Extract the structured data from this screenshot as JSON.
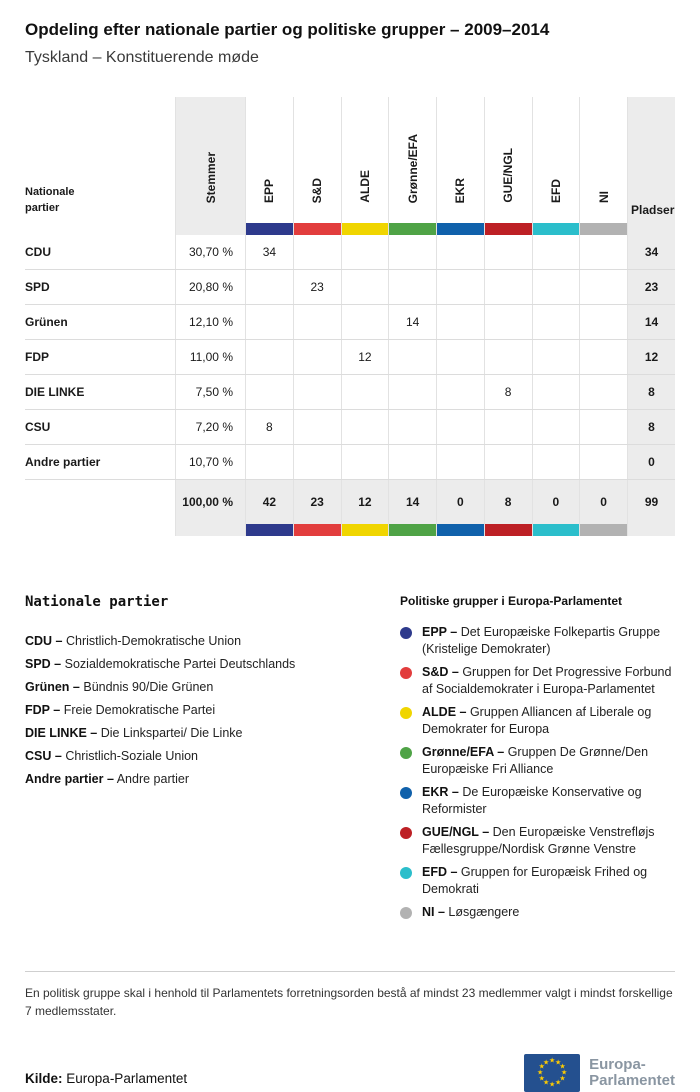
{
  "header": {
    "title": "Opdeling efter nationale partier og politiske grupper – 2009–2014",
    "subtitle": "Tyskland – Konstituerende møde"
  },
  "table": {
    "corner_label": "Nationale partier",
    "stemmer_label": "Stemmer",
    "pladser_label": "Pladser",
    "groups": [
      {
        "label": "EPP",
        "color": "#2e3a8c"
      },
      {
        "label": "S&D",
        "color": "#e23d3d"
      },
      {
        "label": "ALDE",
        "color": "#f0d500"
      },
      {
        "label": "Grønne/EFA",
        "color": "#4fa346"
      },
      {
        "label": "EKR",
        "color": "#1061ab"
      },
      {
        "label": "GUE/NGL",
        "color": "#bd2025"
      },
      {
        "label": "EFD",
        "color": "#2bbecb"
      },
      {
        "label": "NI",
        "color": "#b2b2b2"
      }
    ],
    "rows": [
      {
        "party": "CDU",
        "stemmer": "30,70 %",
        "cells": [
          "34",
          "",
          "",
          "",
          "",
          "",
          "",
          ""
        ],
        "pladser": "34"
      },
      {
        "party": "SPD",
        "stemmer": "20,80 %",
        "cells": [
          "",
          "23",
          "",
          "",
          "",
          "",
          "",
          ""
        ],
        "pladser": "23"
      },
      {
        "party": "Grünen",
        "stemmer": "12,10 %",
        "cells": [
          "",
          "",
          "",
          "14",
          "",
          "",
          "",
          ""
        ],
        "pladser": "14"
      },
      {
        "party": "FDP",
        "stemmer": "11,00 %",
        "cells": [
          "",
          "",
          "12",
          "",
          "",
          "",
          "",
          ""
        ],
        "pladser": "12"
      },
      {
        "party": "DIE LINKE",
        "stemmer": "7,50 %",
        "cells": [
          "",
          "",
          "",
          "",
          "",
          "8",
          "",
          ""
        ],
        "pladser": "8"
      },
      {
        "party": "CSU",
        "stemmer": "7,20 %",
        "cells": [
          "8",
          "",
          "",
          "",
          "",
          "",
          "",
          ""
        ],
        "pladser": "8"
      },
      {
        "party": "Andre partier",
        "stemmer": "10,70 %",
        "cells": [
          "",
          "",
          "",
          "",
          "",
          "",
          "",
          ""
        ],
        "pladser": "0"
      }
    ],
    "total": {
      "stemmer": "100,00 %",
      "cells": [
        "42",
        "23",
        "12",
        "14",
        "0",
        "8",
        "0",
        "0"
      ],
      "pladser": "99"
    }
  },
  "legend_national": {
    "title": "Nationale partier",
    "items": [
      {
        "abbr": "CDU –",
        "desc": "Christlich-Demokratische Union"
      },
      {
        "abbr": "SPD –",
        "desc": "Sozialdemokratische Partei Deutschlands"
      },
      {
        "abbr": "Grünen –",
        "desc": "Bündnis 90/Die Grünen"
      },
      {
        "abbr": "FDP –",
        "desc": "Freie Demokratische Partei"
      },
      {
        "abbr": "DIE LINKE –",
        "desc": "Die Linkspartei/ Die Linke"
      },
      {
        "abbr": "CSU –",
        "desc": "Christlich-Soziale Union"
      },
      {
        "abbr": "Andre partier –",
        "desc": "Andre partier"
      }
    ]
  },
  "legend_groups": {
    "title": "Politiske grupper i Europa-Parlamentet",
    "items": [
      {
        "abbr": "EPP –",
        "desc": "Det Europæiske Folkepartis Gruppe (Kristelige Demokrater)"
      },
      {
        "abbr": "S&D –",
        "desc": "Gruppen for Det Progressive Forbund af Socialdemokrater i Europa-Parlamentet"
      },
      {
        "abbr": "ALDE –",
        "desc": "Gruppen Alliancen af Liberale og Demokrater for Europa"
      },
      {
        "abbr": "Grønne/EFA –",
        "desc": "Gruppen De Grønne/Den Europæiske Fri Alliance"
      },
      {
        "abbr": "EKR –",
        "desc": "De Europæiske Konservative og Reformister"
      },
      {
        "abbr": "GUE/NGL –",
        "desc": "Den Europæiske Venstrefløjs Fællesgruppe/Nordisk Grønne Venstre"
      },
      {
        "abbr": "EFD –",
        "desc": "Gruppen for Europæisk Frihed og Demokrati"
      },
      {
        "abbr": "NI –",
        "desc": "Løsgængere"
      }
    ]
  },
  "footnote": "En politisk gruppe skal i henhold til Parlamentets forretningsorden bestå af mindst 23 medlemmer valgt i mindst forskellige 7 medlemsstater.",
  "footer": {
    "kilde_label": "Kilde:",
    "kilde_value": "Europa-Parlamentet",
    "logo_line1": "Europa-",
    "logo_line2": "Parlamentet"
  },
  "chart_data": {
    "type": "table",
    "title": "Opdeling efter nationale partier og politiske grupper – 2009–2014",
    "subtitle": "Tyskland – Konstituerende møde",
    "columns": [
      "Nationale partier",
      "Stemmer",
      "EPP",
      "S&D",
      "ALDE",
      "Grønne/EFA",
      "EKR",
      "GUE/NGL",
      "EFD",
      "NI",
      "Pladser"
    ],
    "rows": [
      [
        "CDU",
        "30,70 %",
        "34",
        "",
        "",
        "",
        "",
        "",
        "",
        "",
        "34"
      ],
      [
        "SPD",
        "20,80 %",
        "",
        "23",
        "",
        "",
        "",
        "",
        "",
        "",
        "23"
      ],
      [
        "Grünen",
        "12,10 %",
        "",
        "",
        "",
        "14",
        "",
        "",
        "",
        "",
        "14"
      ],
      [
        "FDP",
        "11,00 %",
        "",
        "",
        "12",
        "",
        "",
        "",
        "",
        "",
        "12"
      ],
      [
        "DIE LINKE",
        "7,50 %",
        "",
        "",
        "",
        "",
        "",
        "8",
        "",
        "",
        "8"
      ],
      [
        "CSU",
        "7,20 %",
        "8",
        "",
        "",
        "",
        "",
        "",
        "",
        "",
        "8"
      ],
      [
        "Andre partier",
        "10,70 %",
        "",
        "",
        "",
        "",
        "",
        "",
        "",
        "",
        "0"
      ],
      [
        "",
        "100,00 %",
        "42",
        "23",
        "12",
        "14",
        "0",
        "8",
        "0",
        "0",
        "99"
      ]
    ],
    "group_colors": {
      "EPP": "#2e3a8c",
      "S&D": "#e23d3d",
      "ALDE": "#f0d500",
      "Grønne/EFA": "#4fa346",
      "EKR": "#1061ab",
      "GUE/NGL": "#bd2025",
      "EFD": "#2bbecb",
      "NI": "#b2b2b2"
    }
  }
}
